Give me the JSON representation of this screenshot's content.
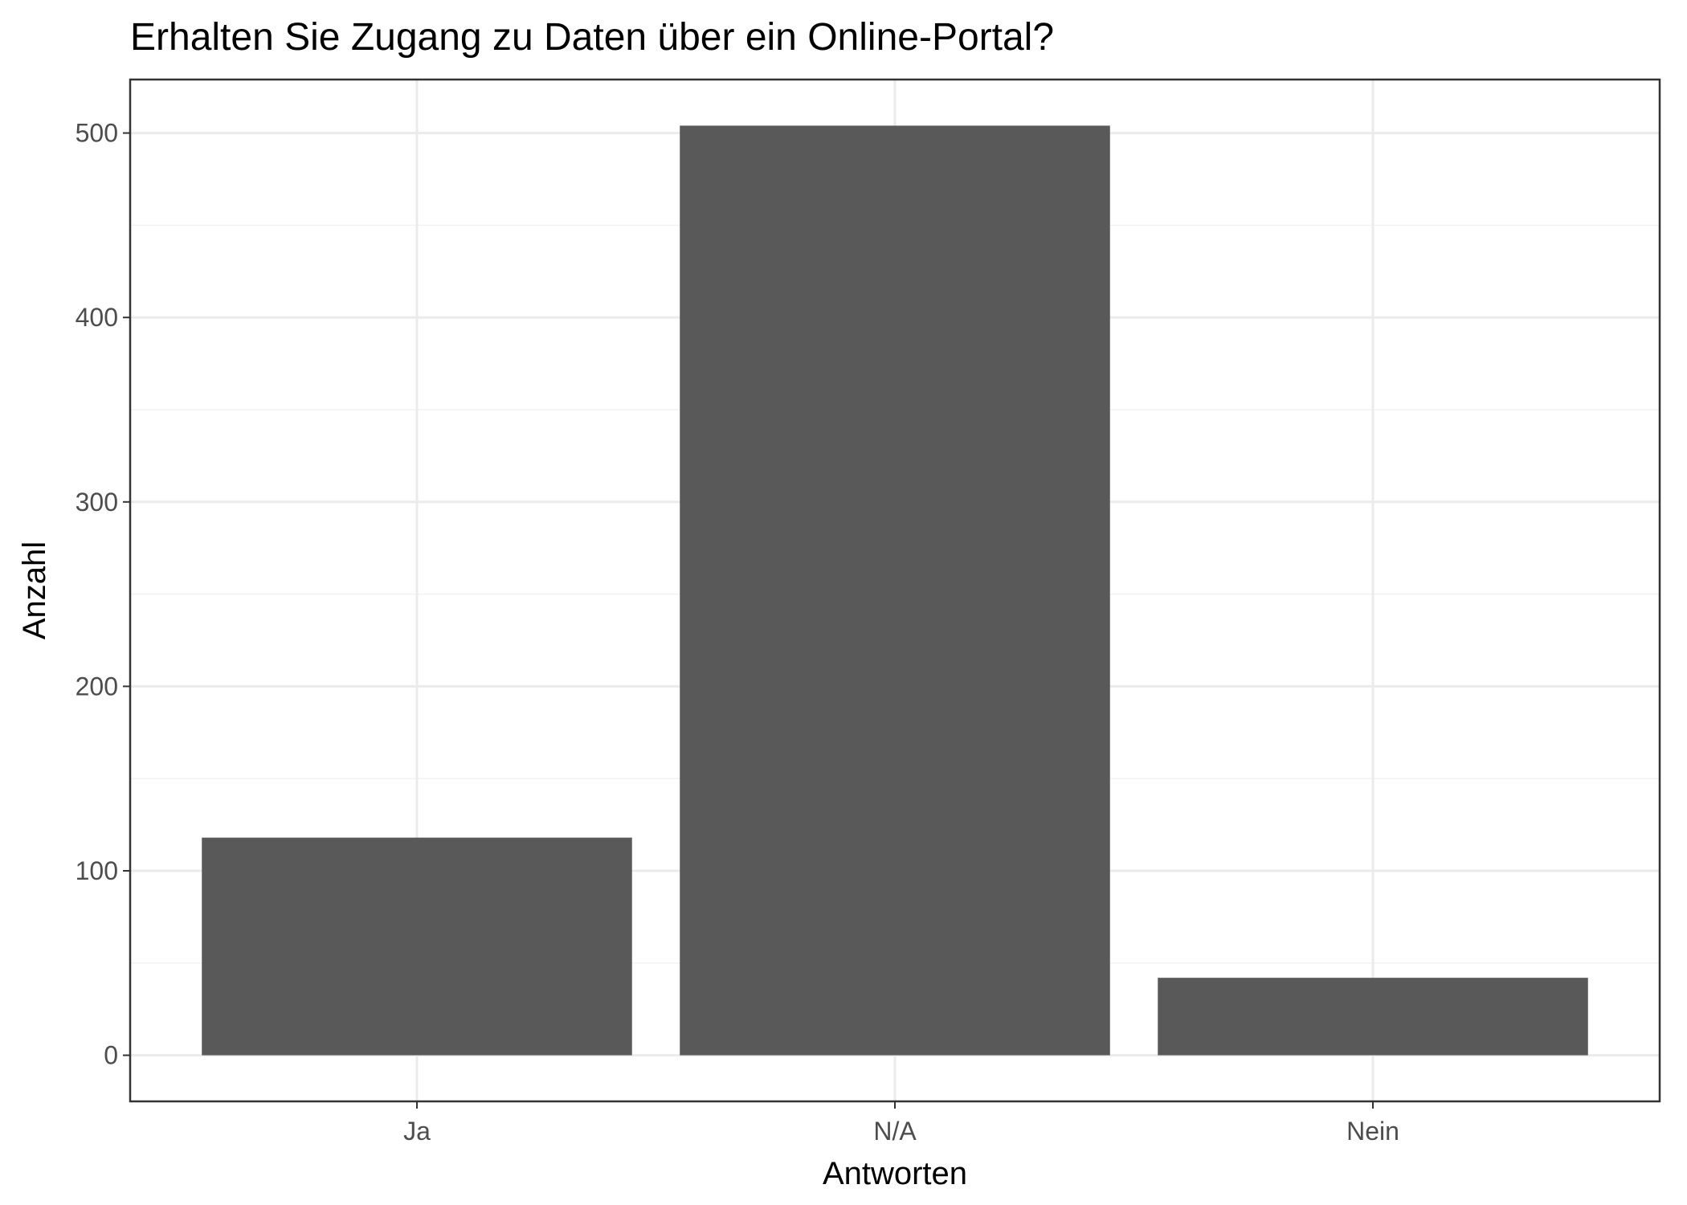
{
  "chart_data": {
    "type": "bar",
    "title": "Erhalten Sie Zugang zu Daten über ein Online-Portal?",
    "xlabel": "Antworten",
    "ylabel": "Anzahl",
    "categories": [
      "Ja",
      "N/A",
      "Nein"
    ],
    "values": [
      118,
      504,
      42
    ],
    "ylim": [
      -25,
      529
    ],
    "yticks": [
      0,
      100,
      200,
      300,
      400,
      500
    ],
    "yminor": [
      50,
      150,
      250,
      350,
      450
    ],
    "grid": true,
    "legend": "none",
    "bar_color": "#595959",
    "grid_color": "#ebebeb",
    "border_color": "#333333"
  }
}
